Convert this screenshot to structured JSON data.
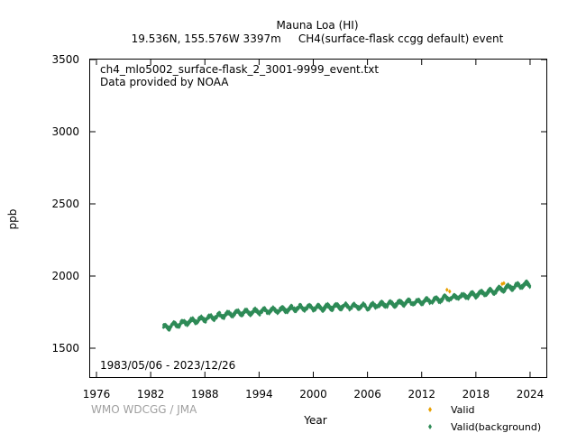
{
  "chart_data": {
    "type": "scatter",
    "title": "Mauna Loa (HI)",
    "subtitle": "19.536N, 155.576W 3397m     CH4(surface-flask ccgg default) event",
    "xlabel": "Year",
    "ylabel": "ppb",
    "xlim": [
      1975.3,
      2025.8
    ],
    "ylim": [
      1300,
      3500
    ],
    "x_ticks": [
      "1976",
      "1982",
      "1988",
      "1994",
      "2000",
      "2006",
      "2012",
      "2018",
      "2024"
    ],
    "y_ticks": [
      "1500",
      "2000",
      "2500",
      "3000",
      "3500"
    ],
    "annotation_file": "ch4_mlo5002_surface-flask_2_3001-9999_event.txt",
    "annotation_provider": "Data provided by NOAA",
    "date_range": "1983/05/06 - 2023/12/26",
    "credit": "WMO WDCGG / JMA",
    "grid": false,
    "legend_position": "bottom-right",
    "series": [
      {
        "name": "Valid",
        "color": "#e8a000",
        "marker": "diamond",
        "points": [
          [
            2014.8,
            1905
          ],
          [
            2015.1,
            1893
          ],
          [
            2020.9,
            1945
          ],
          [
            2021.1,
            1950
          ]
        ]
      },
      {
        "name": "Valid(background)",
        "color": "#2e8b57",
        "marker": "diamond",
        "trend": [
          [
            1983.4,
            1640
          ],
          [
            1984,
            1650
          ],
          [
            1985,
            1665
          ],
          [
            1986,
            1680
          ],
          [
            1987,
            1693
          ],
          [
            1988,
            1705
          ],
          [
            1989,
            1717
          ],
          [
            1990,
            1728
          ],
          [
            1991,
            1740
          ],
          [
            1992,
            1748
          ],
          [
            1993,
            1750
          ],
          [
            1994,
            1755
          ],
          [
            1995,
            1760
          ],
          [
            1996,
            1764
          ],
          [
            1997,
            1768
          ],
          [
            1998,
            1777
          ],
          [
            1999,
            1781
          ],
          [
            2000,
            1782
          ],
          [
            2001,
            1781
          ],
          [
            2002,
            1786
          ],
          [
            2003,
            1790
          ],
          [
            2004,
            1789
          ],
          [
            2005,
            1789
          ],
          [
            2006,
            1788
          ],
          [
            2007,
            1796
          ],
          [
            2008,
            1803
          ],
          [
            2009,
            1808
          ],
          [
            2010,
            1814
          ],
          [
            2011,
            1818
          ],
          [
            2012,
            1823
          ],
          [
            2013,
            1829
          ],
          [
            2014,
            1838
          ],
          [
            2015,
            1848
          ],
          [
            2016,
            1856
          ],
          [
            2017,
            1863
          ],
          [
            2018,
            1872
          ],
          [
            2019,
            1883
          ],
          [
            2020,
            1895
          ],
          [
            2021,
            1912
          ],
          [
            2022,
            1924
          ],
          [
            2023,
            1935
          ],
          [
            2023.99,
            1945
          ]
        ],
        "seasonal_amplitude": 14,
        "scatter_spread": 12
      }
    ]
  }
}
